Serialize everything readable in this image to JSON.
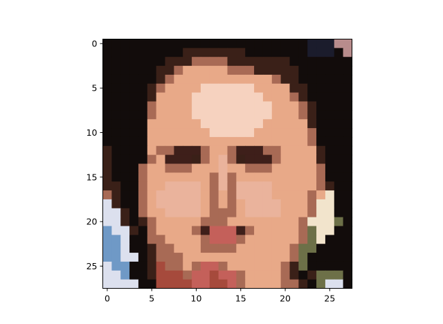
{
  "chart_data": {
    "type": "heatmap",
    "title": "",
    "xlabel": "",
    "ylabel": "",
    "grid": false,
    "rows": 28,
    "cols": 28,
    "xlim": [
      -0.5,
      27.5
    ],
    "ylim": [
      27.5,
      -0.5
    ],
    "x_ticks": [
      0,
      5,
      10,
      15,
      20,
      25
    ],
    "y_ticks": [
      0,
      5,
      10,
      15,
      20,
      25
    ],
    "y_axis_inverted": true,
    "palette": {
      "bg_dark": "#120c0b",
      "bg_blue_dark": "#1b1c2c",
      "hair_brown": "#3a2018",
      "skin_base": "#e8a988",
      "forehead_light": "#f6d2bf",
      "cheek_pink": "#eab39c",
      "eye_dark": "#3e1f1a",
      "shadow": "#a86a55",
      "lips": "#c4605a",
      "bottom_red": "#a64a3c",
      "left_blue": "#6f99c6",
      "left_white": "#dce0ee",
      "right_cream": "#f2e4cc",
      "olive": "#6d7048",
      "top_right_pink": "#b88c8c"
    },
    "description_of_pixels": "28x28 low-resolution color image of a face; pixel colors are stored in the drawing script as a palette-indexed grid"
  }
}
